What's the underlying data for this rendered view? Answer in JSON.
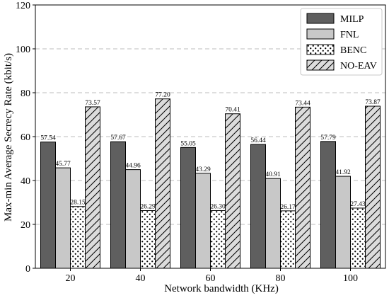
{
  "chart_data": {
    "type": "bar",
    "xlabel": "Network bandwidth (KHz)",
    "ylabel": "Max-min Average Secrecy Rate (kbit/s)",
    "categories": [
      "20",
      "40",
      "60",
      "80",
      "100"
    ],
    "ylim": [
      0,
      120
    ],
    "yticks": [
      0,
      20,
      40,
      60,
      80,
      100,
      120
    ],
    "grid": "horizontal dashed",
    "legend_position": "top-right",
    "series": [
      {
        "name": "MILP",
        "values": [
          57.54,
          57.67,
          55.05,
          56.44,
          57.79
        ],
        "labels": [
          "57.54",
          "57.67",
          "55.05",
          "56.44",
          "57.79"
        ],
        "color": "#5f5f5f",
        "pattern": "solid"
      },
      {
        "name": "FNL",
        "values": [
          45.77,
          44.96,
          43.29,
          40.91,
          41.92
        ],
        "labels": [
          "45.77",
          "44.96",
          "43.29",
          "40.91",
          "41.92"
        ],
        "color": "#c8c8c8",
        "pattern": "solid"
      },
      {
        "name": "BENC",
        "values": [
          28.15,
          26.29,
          26.3,
          26.17,
          27.43
        ],
        "labels": [
          "28.15",
          "26.29",
          "26.30",
          "26.17",
          "27.43"
        ],
        "color": "#ffffff",
        "pattern": "dots"
      },
      {
        "name": "NO-EAV",
        "values": [
          73.57,
          77.2,
          70.41,
          73.44,
          73.87
        ],
        "labels": [
          "73.57",
          "77.20",
          "70.41",
          "73.44",
          "73.87"
        ],
        "color": "#dcdcdc",
        "pattern": "diagonal"
      }
    ]
  }
}
